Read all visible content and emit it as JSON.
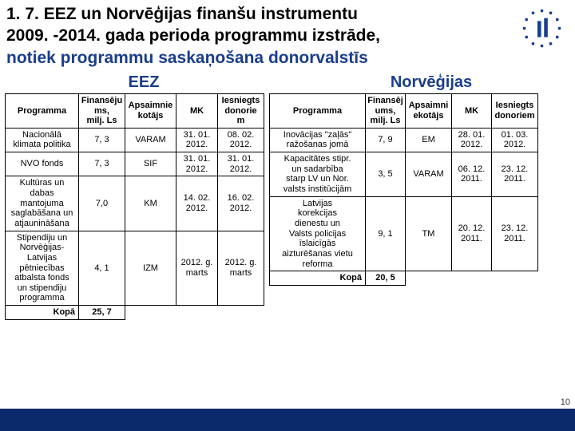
{
  "title_parts": {
    "p1": "1. 7. EEZ un Norvēģijas finanšu instrumentu",
    "p2": " 2009. -2014. gada perioda programmu izstrāde,",
    "p3": "notiek programmu saskaņošana donorvalstīs"
  },
  "logo_color": "#1a3e8c",
  "section_left": "EEZ",
  "section_right": "Norvēģijas",
  "headers": {
    "programma": "Programma",
    "fin_left": "Finansēju\nms,\nmilj. Ls",
    "fin_right": "Finansēj\nums,\nmilj. Ls",
    "apsaim_left": "Apsaimnie\nkotājs",
    "apsaim_right": "Apsaimni\nekotājs",
    "mk": "MK",
    "iesn_left": "Iesniegts\ndonorie\nm",
    "iesn_right": "Iesniegts\ndonoriem"
  },
  "left_rows": [
    {
      "prog": "Nacionālā\nklimata politika",
      "fin": "7, 3",
      "aps": "VARAM",
      "mk": "31. 01.\n2012.",
      "don": "08. 02.\n2012."
    },
    {
      "prog": "NVO fonds",
      "fin": "7, 3",
      "aps": "SIF",
      "mk": "31. 01.\n2012.",
      "don": "31. 01.\n2012."
    },
    {
      "prog": "Kultūras un\ndabas\nmantojuma\nsaglabāšana un\natjaunināšana",
      "fin": "7,0",
      "aps": "KM",
      "mk": "14. 02.\n2012.",
      "don": "16. 02.\n2012."
    },
    {
      "prog": "Stipendiju un\nNorvēģijas-\nLatvijas\npētniecības\natbalsta fonds\nun stipendiju\nprogramma",
      "fin": "4, 1",
      "aps": "IZM",
      "mk": "2012. g.\nmarts",
      "don": "2012. g.\nmarts"
    }
  ],
  "left_total": {
    "label": "Kopā",
    "val": "25, 7"
  },
  "right_rows": [
    {
      "prog": "Inovācijas \"zaļās\"\nražošanas jomā",
      "fin": "7, 9",
      "aps": "EM",
      "mk": "28. 01.\n2012.",
      "don": "01. 03.\n2012."
    },
    {
      "prog": "Kapacitātes stipr.\nun sadarbība\nstarp LV un Nor.\nvalsts institūcijām",
      "fin": "3, 5",
      "aps": "VARAM",
      "mk": "06. 12.\n2011.",
      "don": "23. 12.\n2011."
    },
    {
      "prog": "Latvijas\nkorekcijas\ndienestu un\nValsts policijas\nīslaicīgās\naizturēšanas vietu\nreforma",
      "fin": "9, 1",
      "aps": "TM",
      "mk": "20. 12.\n2011.",
      "don": "23. 12.\n2011."
    }
  ],
  "right_total": {
    "label": "Kopā",
    "val": "20, 5"
  },
  "page_number": "10"
}
